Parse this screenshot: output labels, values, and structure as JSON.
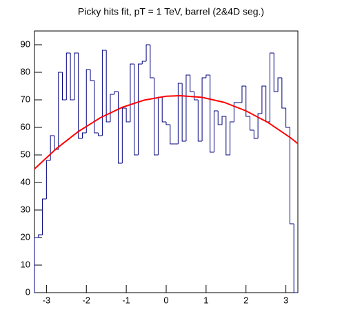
{
  "chart_data": {
    "type": "histogram",
    "title": "Picky hits fit, pT = 1 TeV, barrel (2&4D seg.)",
    "bins": [
      -3.3,
      -3.2,
      -3.1,
      -3.0,
      -2.9,
      -2.8,
      -2.7,
      -2.6,
      -2.5,
      -2.4,
      -2.3,
      -2.2,
      -2.1,
      -2.0,
      -1.9,
      -1.8,
      -1.7,
      -1.6,
      -1.5,
      -1.4,
      -1.3,
      -1.2,
      -1.1,
      -1.0,
      -0.9,
      -0.8,
      -0.7,
      -0.6,
      -0.5,
      -0.4,
      -0.3,
      -0.2,
      -0.1,
      0,
      0.1,
      0.2,
      0.3,
      0.4,
      0.5,
      0.6,
      0.7,
      0.8,
      0.9,
      1.0,
      1.1,
      1.2,
      1.3,
      1.4,
      1.5,
      1.6,
      1.7,
      1.8,
      1.9,
      2.0,
      2.1,
      2.2,
      2.3,
      2.4,
      2.5,
      2.6,
      2.7,
      2.8,
      2.9,
      3.0,
      3.1,
      3.2,
      3.3
    ],
    "values": [
      20,
      21,
      34,
      48,
      57,
      52,
      80,
      70,
      87,
      70,
      87,
      56,
      58,
      81,
      77,
      58,
      57,
      88,
      62,
      72,
      73,
      47,
      67,
      62,
      83,
      50,
      83,
      84,
      90,
      78,
      50,
      71,
      62,
      61,
      54,
      54,
      76,
      55,
      79,
      73,
      70,
      55,
      78,
      79,
      51,
      66,
      61,
      64,
      50,
      62,
      69,
      69,
      75,
      64,
      59,
      56,
      65,
      75,
      62,
      87,
      73,
      78,
      67,
      60,
      25,
      0
    ],
    "color": "#000080",
    "fit": {
      "color": "#ff0000",
      "x": [
        -3.3,
        -2.75,
        -2.2,
        -1.65,
        -1.1,
        -0.55,
        0,
        0.35,
        0.9,
        1.45,
        2.0,
        2.55,
        3.1,
        3.3
      ],
      "values": [
        44.9,
        52.3,
        58.5,
        63.5,
        67.3,
        69.9,
        71.3,
        71.5,
        70.9,
        69.1,
        66.0,
        61.8,
        56.4,
        54.1
      ]
    },
    "xlim": [
      -3.3,
      3.3
    ],
    "xticks": [
      -3,
      -2,
      -1,
      0,
      1,
      2,
      3
    ],
    "ylim": [
      0,
      95
    ],
    "yticks": [
      0,
      10,
      20,
      30,
      40,
      50,
      60,
      70,
      80,
      90
    ]
  }
}
